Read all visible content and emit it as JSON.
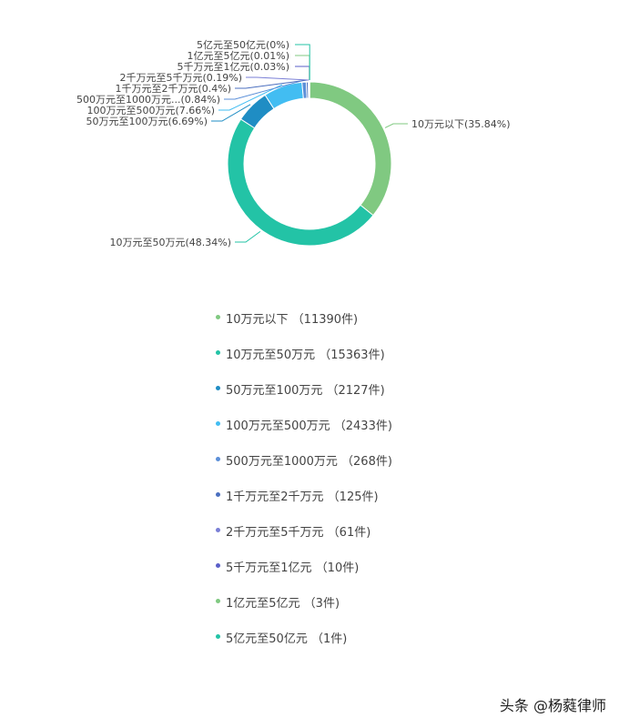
{
  "chart_data": {
    "type": "pie",
    "donut": true,
    "start": "top, clockwise",
    "legend_placement": "bottom",
    "categories": [
      "10万元以下",
      "10万元至50万元",
      "50万元至100万元",
      "100万元至500万元",
      "500万元至1000万元",
      "1千万元至2千万元",
      "2千万元至5千万元",
      "5千万元至1亿元",
      "1亿元至5亿元",
      "5亿元至50亿元"
    ],
    "values": [
      11390,
      15363,
      2127,
      2433,
      268,
      125,
      61,
      10,
      3,
      1
    ],
    "slice_labels": [
      "10万元以下(35.84%)",
      "10万元至50万元(48.34%)",
      "50万元至100万元(6.69%)",
      "100万元至500万元(7.66%)",
      "500万元至1000万元...(0.84%)",
      "1千万元至2千万元(0.4%)",
      "2千万元至5千万元(0.19%)",
      "5千万元至1亿元(0.03%)",
      "1亿元至5亿元(0.01%)",
      "5亿元至50亿元(0%)"
    ],
    "legend_labels": [
      "10万元以下 （11390件)",
      "10万元至50万元 （15363件)",
      "50万元至100万元 （2127件)",
      "100万元至500万元 （2433件)",
      "500万元至1000万元 （268件)",
      "1千万元至2千万元 （125件)",
      "2千万元至5千万元 （61件)",
      "5千万元至1亿元 （10件)",
      "1亿元至5亿元 （3件)",
      "5亿元至50亿元 （1件)"
    ],
    "colors": [
      "#80c981",
      "#23c3a6",
      "#1f8dc4",
      "#42bdf2",
      "#5b8fd8",
      "#4b6fbf",
      "#7a7fd6",
      "#5a5fc8",
      "#80c981",
      "#23c3a6"
    ]
  },
  "watermark": "头条 @杨蕤律师"
}
